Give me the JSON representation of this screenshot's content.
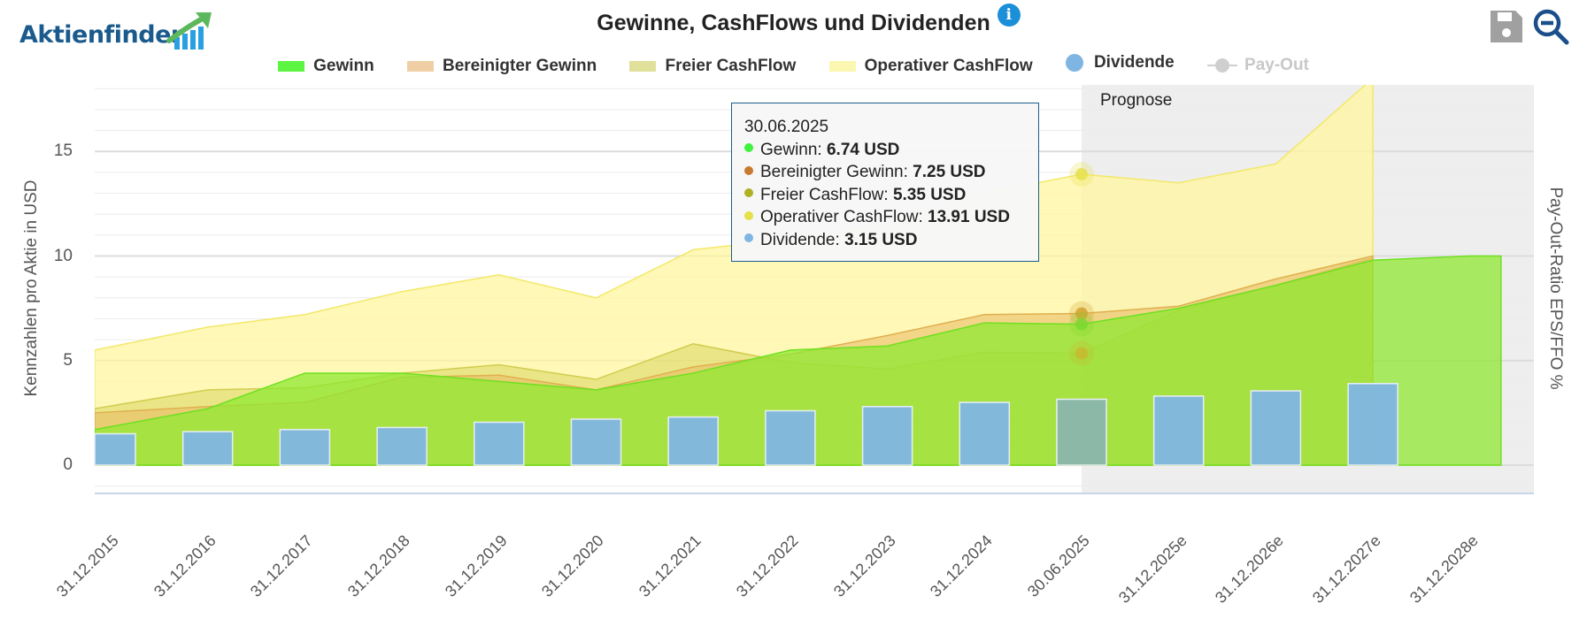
{
  "header": {
    "logo_text": "Aktienfinder",
    "title": "Gewinne, CashFlows und Dividenden",
    "info_icon": "i",
    "tools": [
      {
        "name": "save-icon",
        "label": "Speichern"
      },
      {
        "name": "zoom-out-icon",
        "label": "Zoom out"
      }
    ]
  },
  "legend": [
    {
      "label": "Gewinn",
      "color": "#5cf542",
      "symbol": "area",
      "enabled": true
    },
    {
      "label": "Bereinigter Gewinn",
      "color": "#efcfa3",
      "symbol": "area",
      "enabled": true
    },
    {
      "label": "Freier CashFlow",
      "color": "#e0e09a",
      "symbol": "area",
      "enabled": true
    },
    {
      "label": "Operativer CashFlow",
      "color": "#fbf6b0",
      "symbol": "area",
      "enabled": true
    },
    {
      "label": "Dividende",
      "color": "#7fb5e3",
      "symbol": "circle",
      "enabled": true
    },
    {
      "label": "Pay-Out",
      "color": "#cfcfcf",
      "symbol": "line-marker",
      "enabled": false
    }
  ],
  "tooltip": {
    "date": "30.06.2025",
    "rows": [
      {
        "label": "Gewinn",
        "value": "6.74 USD",
        "color": "#3ef23e"
      },
      {
        "label": "Bereinigter Gewinn",
        "value": "7.25 USD",
        "color": "#c87a30"
      },
      {
        "label": "Freier CashFlow",
        "value": "5.35 USD",
        "color": "#b0b025"
      },
      {
        "label": "Operativer CashFlow",
        "value": "13.91 USD",
        "color": "#e6e04a"
      },
      {
        "label": "Dividende",
        "value": "3.15 USD",
        "color": "#7fb5e3"
      }
    ]
  },
  "chart_data": {
    "type": "area",
    "title": "Gewinne, CashFlows und Dividenden",
    "xlabel": "",
    "ylabel": "Kennzahlen pro Aktie in USD",
    "y2label": "Pay-Out-Ratio EPS/FFO %",
    "ylim": [
      -1,
      18
    ],
    "yticks": [
      0,
      5,
      10,
      15
    ],
    "grid": true,
    "legend_position": "top-center",
    "forecast_band": {
      "label": "Prognose",
      "from": "30.06.2025",
      "to": "31.12.2028e"
    },
    "categories": [
      "31.12.2015",
      "31.12.2016",
      "31.12.2017",
      "31.12.2018",
      "31.12.2019",
      "31.12.2020",
      "31.12.2021",
      "31.12.2022",
      "31.12.2023",
      "31.12.2024",
      "30.06.2025",
      "31.12.2025e",
      "31.12.2026e",
      "31.12.2027e",
      "31.12.2028e"
    ],
    "series": [
      {
        "name": "Operativer CashFlow",
        "type": "area",
        "values": [
          5.5,
          6.6,
          7.2,
          8.3,
          9.1,
          8.0,
          10.3,
          10.8,
          11.5,
          13.0,
          13.91,
          13.5,
          14.4,
          18.5,
          null
        ]
      },
      {
        "name": "Freier CashFlow",
        "type": "area",
        "values": [
          2.7,
          3.6,
          3.7,
          4.4,
          4.8,
          4.1,
          5.8,
          4.9,
          4.6,
          5.4,
          5.35,
          7.4,
          8.6,
          9.9,
          null
        ]
      },
      {
        "name": "Bereinigter Gewinn",
        "type": "area",
        "values": [
          2.5,
          2.8,
          3.0,
          4.2,
          4.3,
          3.6,
          4.7,
          5.3,
          6.2,
          7.2,
          7.25,
          7.6,
          8.9,
          10.0,
          null
        ]
      },
      {
        "name": "Gewinn",
        "type": "area",
        "values": [
          1.7,
          2.7,
          4.4,
          4.4,
          4.0,
          3.6,
          4.4,
          5.5,
          5.7,
          6.8,
          6.74,
          7.5,
          8.6,
          9.8,
          10.0
        ]
      },
      {
        "name": "Dividende",
        "type": "bar",
        "values": [
          1.5,
          1.6,
          1.7,
          1.8,
          2.05,
          2.2,
          2.3,
          2.6,
          2.8,
          3.0,
          3.15,
          3.3,
          3.55,
          3.9,
          null
        ]
      }
    ],
    "highlight_category": "30.06.2025"
  }
}
